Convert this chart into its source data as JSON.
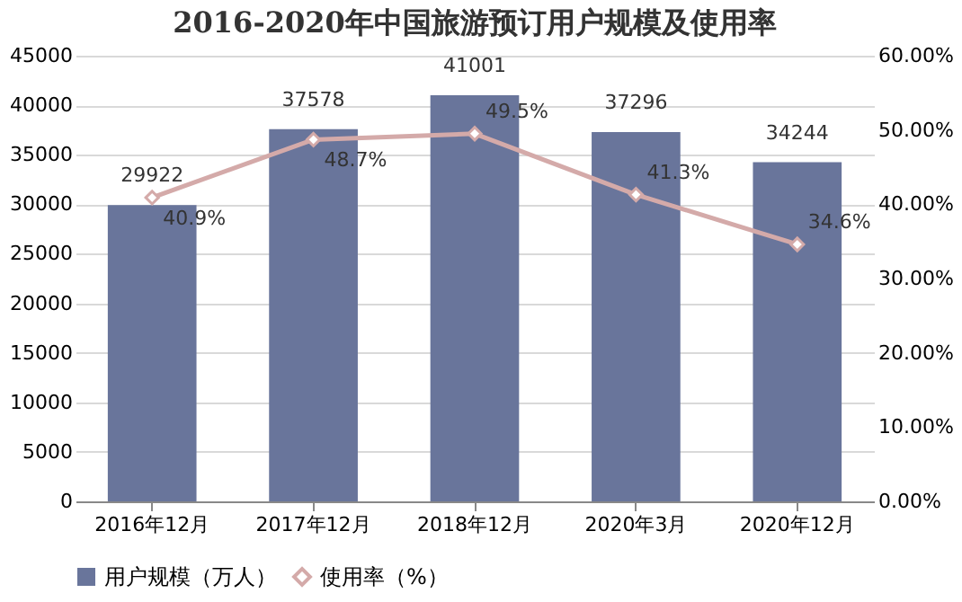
{
  "chart_data": {
    "type": "bar",
    "title": "2016-2020年中国旅游预订用户规模及使用率",
    "categories": [
      "2016年12月",
      "2017年12月",
      "2018年12月",
      "2020年3月",
      "2020年12月"
    ],
    "series": [
      {
        "name": "用户规模（万人）",
        "color": "#69759b",
        "values": [
          29922,
          37578,
          41001,
          37296,
          34244
        ],
        "value_labels": [
          "29922",
          "37578",
          "41001",
          "37296",
          "34244"
        ]
      },
      {
        "name": "使用率（%）",
        "type": "line",
        "axis": "y2",
        "color": "#d4aaa9",
        "marker": "diamond",
        "line_style": "solid",
        "values": [
          40.9,
          48.7,
          49.5,
          41.3,
          34.6
        ],
        "value_labels": [
          "40.9%",
          "48.7%",
          "49.5%",
          "41.3%",
          "34.6%"
        ]
      }
    ],
    "ylim": [
      0,
      45000
    ],
    "yticks": [
      0,
      5000,
      10000,
      15000,
      20000,
      25000,
      30000,
      35000,
      40000,
      45000
    ],
    "y2lim": [
      0,
      60
    ],
    "y2ticks": [
      {
        "value": 0,
        "label": "0.00%"
      },
      {
        "value": 10,
        "label": "10.00%"
      },
      {
        "value": 20,
        "label": "20.00%"
      },
      {
        "value": 30,
        "label": "30.00%"
      },
      {
        "value": 40,
        "label": "40.00%"
      },
      {
        "value": 50,
        "label": "50.00%"
      },
      {
        "value": 60,
        "label": "60.00%"
      }
    ],
    "grid": "y",
    "legend": "bottom"
  }
}
